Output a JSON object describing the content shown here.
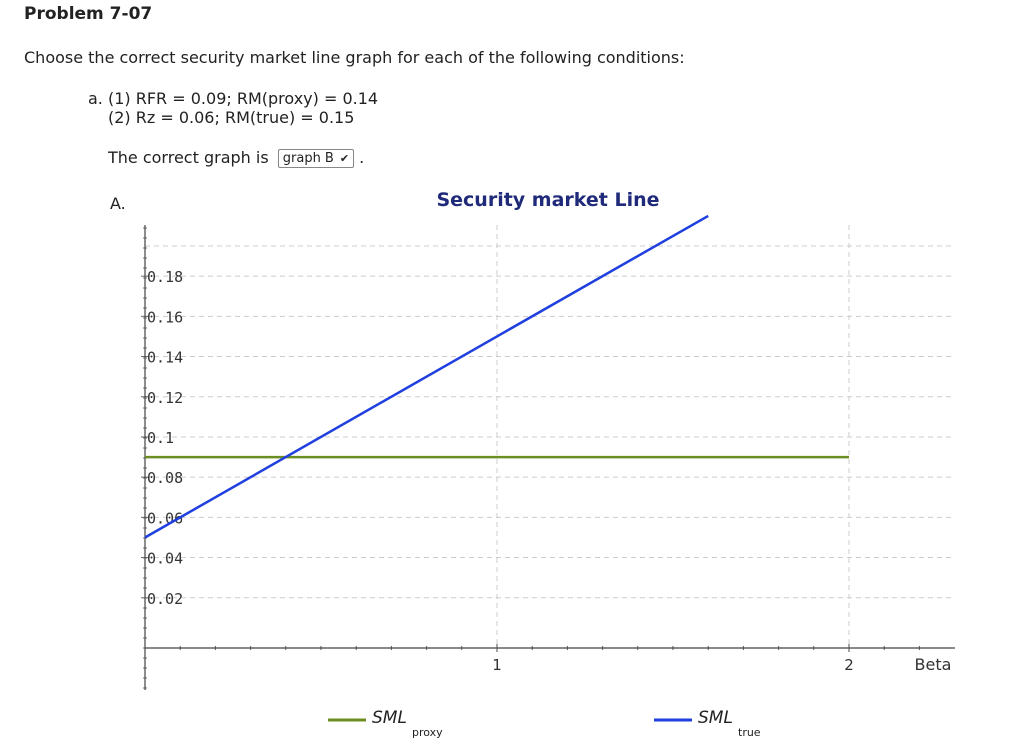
{
  "header": {
    "problem_title": "Problem 7-07",
    "instruction": "Choose the correct security market line graph for each of the following conditions:"
  },
  "conditions": {
    "prefix_a": "a. (1)",
    "line1_rest": "RFR = 0.09; RM(proxy) = 0.14",
    "prefix_2": "(2)",
    "line2_rest": "Rz = 0.06; RM(true) = 0.15"
  },
  "answer": {
    "label": "The correct graph is",
    "selected_value": "graph B",
    "trailing": "."
  },
  "graph_label": "A.",
  "chart_data": {
    "type": "line",
    "title": "Security market Line",
    "xlabel": "Beta",
    "ylabel": "",
    "xlim": [
      0,
      2.3
    ],
    "ylim": [
      -0.01,
      0.205
    ],
    "x_ticks": [
      1,
      2
    ],
    "y_ticks": [
      "0.02",
      "0.04",
      "0.06",
      "0.08",
      "0.1",
      "0.12",
      "0.14",
      "0.16",
      "0.18"
    ],
    "grid": true,
    "legend_position": "bottom",
    "series": [
      {
        "name": "SML",
        "subscript": "proxy",
        "color": "#6b8e23",
        "points": [
          [
            0,
            0.09
          ],
          [
            2,
            0.09
          ]
        ]
      },
      {
        "name": "SML",
        "subscript": "true",
        "color": "#1f3fdf",
        "points": [
          [
            0,
            0.05
          ],
          [
            1,
            0.15
          ],
          [
            1.6,
            0.21
          ]
        ]
      }
    ]
  }
}
